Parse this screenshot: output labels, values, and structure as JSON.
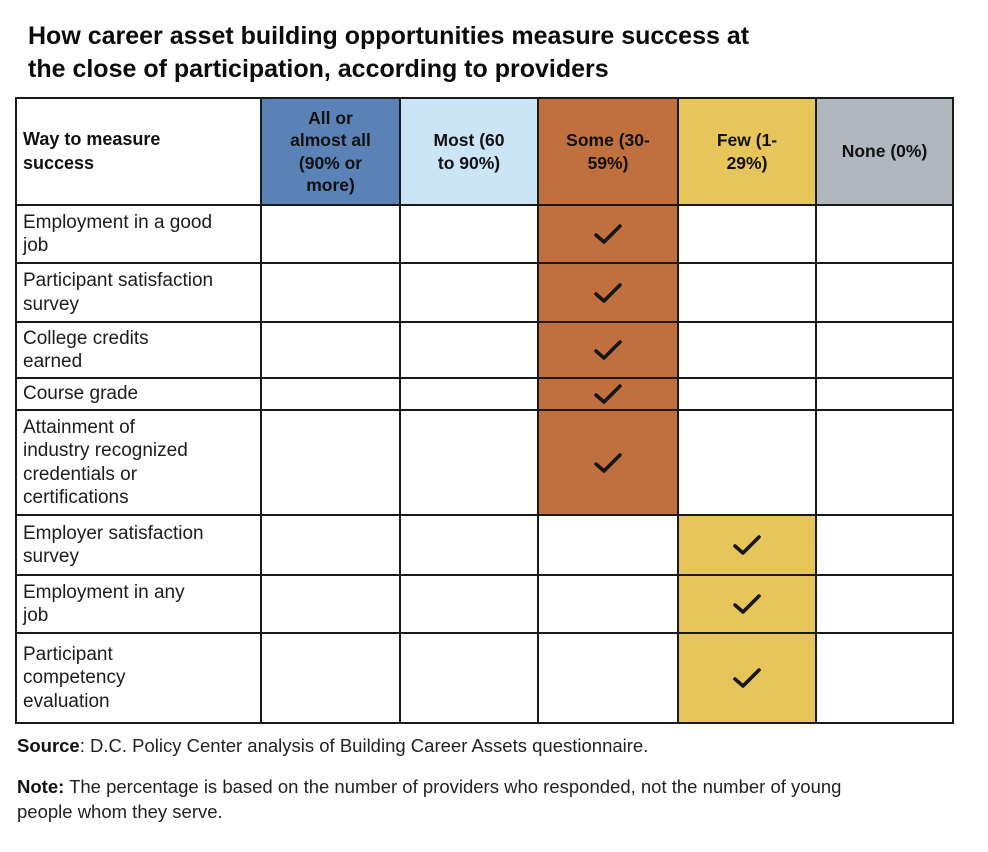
{
  "title": "How career asset building opportunities measure success at\nthe close of participation, according to providers",
  "chart_data": {
    "type": "table",
    "title": "How career asset building opportunities measure success at the close of participation, according to providers",
    "row_header": "Way to measure\nsuccess",
    "check_glyph": "✓",
    "columns": [
      {
        "key": "all",
        "label": "All or\nalmost all\n(90% or\nmore)",
        "color": "#5b82b6"
      },
      {
        "key": "most",
        "label": "Most (60\nto 90%)",
        "color": "#cbe4f6"
      },
      {
        "key": "some",
        "label": "Some (30-\n59%)",
        "color": "#c06f3e"
      },
      {
        "key": "few",
        "label": "Few (1-\n29%)",
        "color": "#e6c65b"
      },
      {
        "key": "none",
        "label": "None (0%)",
        "color": "#b1b7be"
      }
    ],
    "rows": [
      {
        "label": "Employment in a good\njob",
        "checked": "some"
      },
      {
        "label": "Participant satisfaction\nsurvey",
        "checked": "some"
      },
      {
        "label": "College credits\nearned",
        "checked": "some"
      },
      {
        "label": "Course grade",
        "checked": "some"
      },
      {
        "label": "Attainment of\nindustry recognized\ncredentials or\ncertifications",
        "checked": "some"
      },
      {
        "label": "Employer satisfaction\nsurvey",
        "checked": "few"
      },
      {
        "label": "Employment in any\njob",
        "checked": "few"
      },
      {
        "label": "Participant\ncompetency\nevaluation",
        "checked": "few"
      }
    ],
    "colors": {
      "border": "#1a1a1a",
      "check": "#161616",
      "background": "#ffffff"
    }
  },
  "footer": {
    "source_label": "Source",
    "source_text": ": D.C. Policy Center analysis of Building Career Assets questionnaire.",
    "note_label": "Note:",
    "note_text": " The percentage is based on the number of providers who responded, not the number of young people whom they serve."
  }
}
